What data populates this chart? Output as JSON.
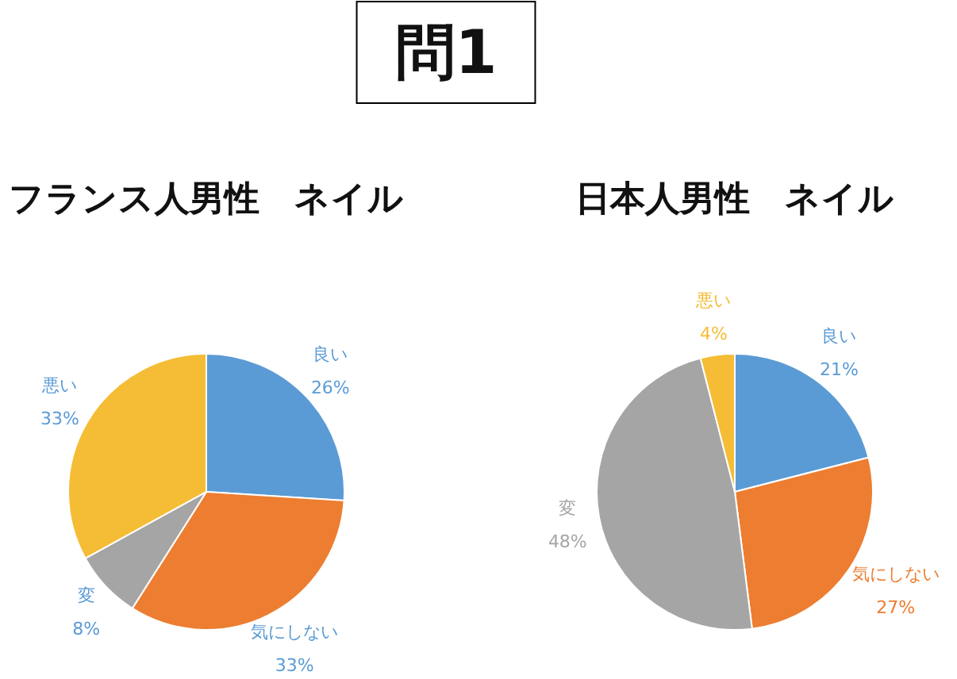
{
  "chart_data": [
    {
      "type": "pie",
      "title": "フランス人男性　ネイル",
      "annotations": [
        "問1"
      ],
      "categories": [
        "良い",
        "気にしない",
        "変",
        "悪い"
      ],
      "values": [
        26,
        33,
        8,
        33
      ],
      "colors": [
        "#5b9bd5",
        "#ed7d31",
        "#a5a5a5",
        "#f5bc35"
      ],
      "value_labels": [
        "26%",
        "33%",
        "8%",
        "33%"
      ]
    },
    {
      "type": "pie",
      "title": "日本人男性　ネイル",
      "categories": [
        "良い",
        "気にしない",
        "変",
        "悪い"
      ],
      "values": [
        21,
        27,
        48,
        4
      ],
      "colors": [
        "#5b9bd5",
        "#ed7d31",
        "#a5a5a5",
        "#f5bc35"
      ],
      "value_labels": [
        "21%",
        "27%",
        "48%",
        "4%"
      ]
    }
  ]
}
